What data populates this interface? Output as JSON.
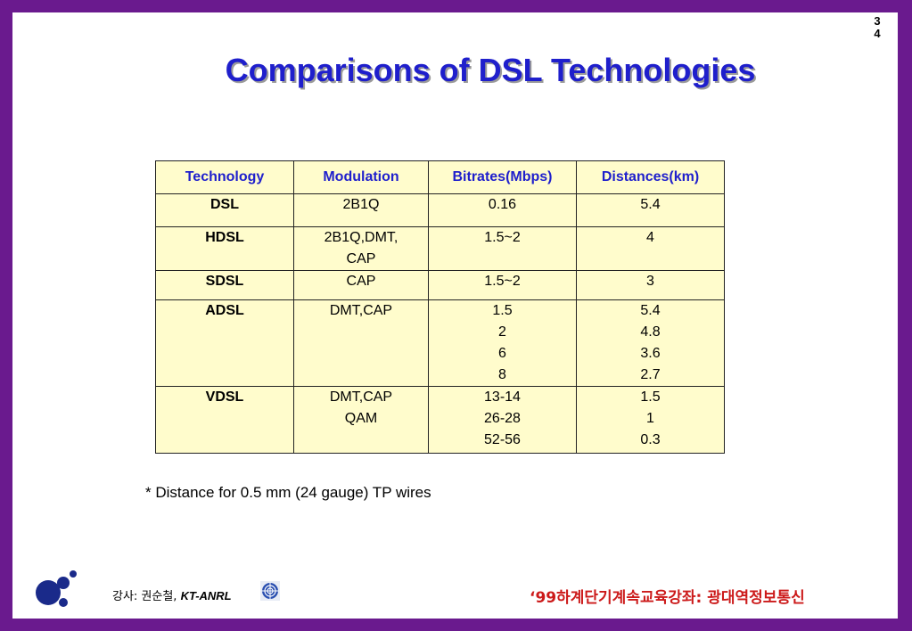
{
  "page_number": "3\n4",
  "title": "Comparisons of DSL Technologies",
  "table": {
    "headers": [
      "Technology",
      "Modulation",
      "Bitrates(Mbps)",
      "Distances(km)"
    ],
    "rows": [
      {
        "technology": "DSL",
        "modulation": "2B1Q",
        "bitrates": "0.16",
        "distances": "5.4"
      },
      {
        "technology": "HDSL",
        "modulation": "2B1Q,DMT,\nCAP",
        "bitrates": "1.5~2",
        "distances": "4"
      },
      {
        "technology": "SDSL",
        "modulation": "CAP",
        "bitrates": "1.5~2",
        "distances": "3"
      },
      {
        "technology": "ADSL",
        "modulation": "DMT,CAP",
        "bitrates": "1.5\n2\n6\n8",
        "distances": "5.4\n4.8\n3.6\n2.7"
      },
      {
        "technology": "VDSL",
        "modulation": "DMT,CAP\nQAM",
        "bitrates": "13-14\n26-28\n52-56",
        "distances": "1.5\n1\n0.3"
      }
    ]
  },
  "footnote": "* Distance for 0.5 mm (24 gauge) TP wires",
  "footer": {
    "lecturer_prefix": "강사: 권순철, ",
    "lecturer_org": "KT-ANRL",
    "course": "‘99하계단기계속교육강좌: 광대역정보통신"
  },
  "colors": {
    "frame": "#6a1a8e",
    "title": "#1f1fcc",
    "table_bg": "#fffccc",
    "footer_course": "#cc1a1a"
  },
  "icons": [
    "company-logo-icon",
    "kt-emblem-icon"
  ]
}
